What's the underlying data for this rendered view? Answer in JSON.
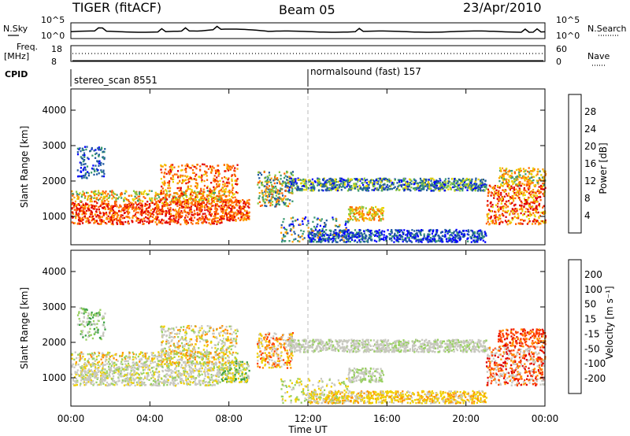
{
  "header": {
    "title": "TIGER (fitACF)",
    "beam": "Beam 05",
    "date": "23/Apr/2010"
  },
  "top_panels": {
    "nsky_label": "N.Sky",
    "nsky_ticks": [
      "10^5",
      "10^0"
    ],
    "nsearch_label": "N.Search",
    "nsearch_ticks": [
      "10^5",
      "10^0"
    ],
    "freq_label_1": "Freq.",
    "freq_label_2": "[MHz]",
    "freq_ticks": [
      "18",
      "8"
    ],
    "nave_label": "Nave",
    "nave_ticks": [
      "60",
      "0"
    ],
    "cpid_label": "CPID",
    "cpid_segments": [
      {
        "label": "stereo_scan 8551",
        "start_hour": 0
      },
      {
        "label": "normalsound (fast) 157",
        "start_hour": 12
      }
    ]
  },
  "chart_data": [
    {
      "type": "heatmap",
      "title": "",
      "xlabel": "",
      "ylabel": "Slant Range [km]",
      "xlim": [
        0,
        24
      ],
      "ylim": [
        200,
        4600
      ],
      "yticks": [
        "1000",
        "2000",
        "3000",
        "4000"
      ],
      "colorbar": {
        "label": "Power [dB]",
        "ticks": [
          "28",
          "24",
          "20",
          "16",
          "12",
          "8",
          "4"
        ],
        "colors": [
          "#e00000",
          "#ff6000",
          "#ff9f00",
          "#e8d400",
          "#88c840",
          "#3a9a70",
          "#205aa0",
          "#0000ff"
        ]
      }
    },
    {
      "type": "heatmap",
      "title": "",
      "xlabel": "Time UT",
      "ylabel": "Slant Range [km]",
      "xlim": [
        0,
        24
      ],
      "ylim": [
        200,
        4600
      ],
      "xticks": [
        "00:00",
        "04:00",
        "08:00",
        "12:00",
        "16:00",
        "20:00",
        "00:00"
      ],
      "yticks": [
        "1000",
        "2000",
        "3000",
        "4000"
      ],
      "colorbar": {
        "label": "Velocity [m s⁻¹]",
        "ticks": [
          "200",
          "100",
          "50",
          "15",
          "-15",
          "-50",
          "-100",
          "-200"
        ],
        "colors": [
          "#1020a0",
          "#3a78c0",
          "#3aa040",
          "#98d060",
          "#c8c8c0",
          "#f0d000",
          "#ff9000",
          "#ff4000",
          "#e00000"
        ]
      }
    }
  ]
}
